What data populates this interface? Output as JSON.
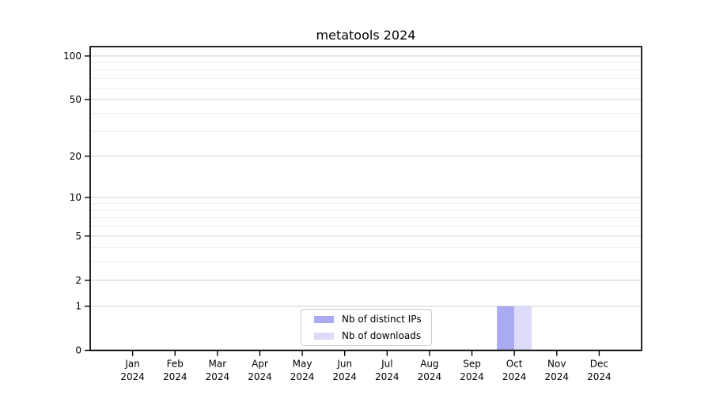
{
  "figure": {
    "background": "#ffffff"
  },
  "chart_data": {
    "type": "bar",
    "title": "metatools 2024",
    "months": [
      "Jan",
      "Feb",
      "Mar",
      "Apr",
      "May",
      "Jun",
      "Jul",
      "Aug",
      "Sep",
      "Oct",
      "Nov",
      "Dec"
    ],
    "year": "2024",
    "categories": [
      "Jan 2024",
      "Feb 2024",
      "Mar 2024",
      "Apr 2024",
      "May 2024",
      "Jun 2024",
      "Jul 2024",
      "Aug 2024",
      "Sep 2024",
      "Oct 2024",
      "Nov 2024",
      "Dec 2024"
    ],
    "series": [
      {
        "name": "Nb of distinct IPs",
        "color": "#aaaaf2",
        "values": [
          0,
          0,
          0,
          0,
          0,
          0,
          0,
          0,
          0,
          1,
          0,
          0
        ]
      },
      {
        "name": "Nb of downloads",
        "color": "#dcdcf9",
        "values": [
          0,
          0,
          0,
          0,
          0,
          0,
          0,
          0,
          0,
          1,
          0,
          0
        ]
      }
    ],
    "y_axis": {
      "scale": "log1p",
      "ticks": [
        0,
        1,
        2,
        5,
        10,
        20,
        50,
        100
      ],
      "minor_ticks": [
        3,
        4,
        6,
        7,
        8,
        9,
        30,
        40,
        60,
        70,
        80,
        90
      ],
      "ylim": [
        0,
        116
      ]
    },
    "x_axis": {
      "tick_labels_two_lines": true
    },
    "legend": {
      "position": "lower center",
      "entries": [
        "Nb of distinct IPs",
        "Nb of downloads"
      ]
    },
    "grid": {
      "major": true,
      "minor": true,
      "major_color": "#d0d0d0",
      "minor_color": "#ededed"
    }
  }
}
